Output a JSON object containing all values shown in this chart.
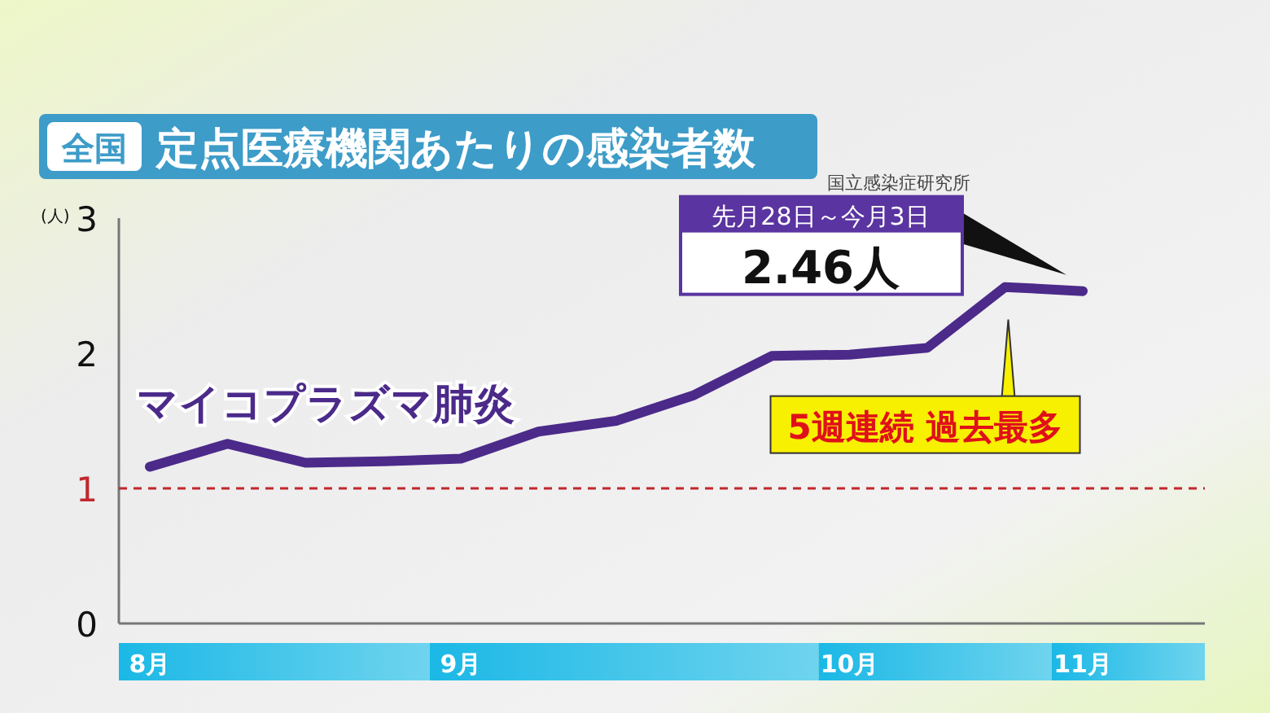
{
  "chart_data": {
    "type": "line",
    "title": "全国 定点医療機関あたりの感染者数",
    "ylabel": "(人)",
    "categories": [
      "8月",
      null,
      null,
      null,
      "9月",
      null,
      null,
      null,
      null,
      "10月",
      null,
      null,
      "11月"
    ],
    "series": [
      {
        "name": "マイコプラズマ肺炎",
        "color": "#4b2a8a",
        "values": [
          1.16,
          1.33,
          1.19,
          1.2,
          1.22,
          1.42,
          1.5,
          1.69,
          1.98,
          1.99,
          2.04,
          2.49,
          2.46
        ]
      }
    ],
    "ylim": [
      0,
      3
    ],
    "yticks": [
      0,
      1,
      2,
      3
    ],
    "grid": false,
    "legend": false,
    "marker": "none",
    "line_style": "solid",
    "ref_lines": [
      {
        "axis": "y",
        "value": 1,
        "color": "#c0282d",
        "line_style": "dashed"
      }
    ],
    "annotations": [
      "国立感染症研究所",
      "先月28日～今月3日",
      "2.46人",
      "5週連続 過去最多"
    ]
  }
}
